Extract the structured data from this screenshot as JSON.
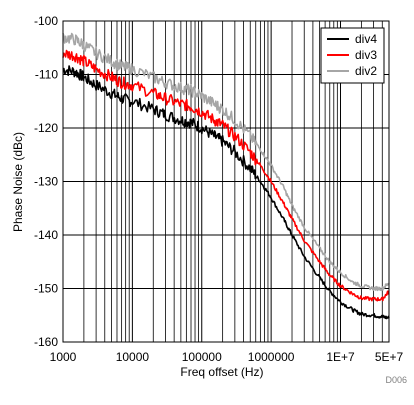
{
  "chart_data": {
    "type": "line",
    "xlabel": "Freq offset (Hz)",
    "ylabel": "Phase Noise (dBc)",
    "x_scale": "log",
    "xlim": [
      1000,
      50000000
    ],
    "ylim": [
      -160,
      -100
    ],
    "grid": true,
    "legend_position": "top-right",
    "figure_id": "D006",
    "x_ticks": [
      {
        "value": 1000,
        "label": "1000"
      },
      {
        "value": 10000,
        "label": "10000"
      },
      {
        "value": 100000,
        "label": "100000"
      },
      {
        "value": 1000000,
        "label": "1000000"
      },
      {
        "value": 10000000,
        "label": "1E+7"
      },
      {
        "value": 50000000,
        "label": "5E+7"
      }
    ],
    "y_ticks": [
      {
        "value": -100,
        "label": "-100"
      },
      {
        "value": -110,
        "label": "-110"
      },
      {
        "value": -120,
        "label": "-120"
      },
      {
        "value": -130,
        "label": "-130"
      },
      {
        "value": -140,
        "label": "-140"
      },
      {
        "value": -150,
        "label": "-150"
      },
      {
        "value": -160,
        "label": "-160"
      }
    ],
    "series": [
      {
        "name": "div4",
        "color": "#000000",
        "x": [
          1000,
          1500,
          2000,
          3000,
          5000,
          7000,
          10000,
          20000,
          30000,
          50000,
          70000,
          100000,
          150000,
          200000,
          300000,
          500000,
          700000,
          1000000,
          1500000,
          2000000,
          3000000,
          5000000,
          7000000,
          10000000,
          15000000,
          20000000,
          30000000,
          40000000,
          50000000
        ],
        "y": [
          -109,
          -109.5,
          -110.5,
          -112,
          -113.5,
          -114.5,
          -115,
          -116.5,
          -117.5,
          -118.5,
          -119,
          -120,
          -121.5,
          -122.5,
          -124.5,
          -127.5,
          -130,
          -133,
          -137,
          -140,
          -144,
          -148,
          -150.5,
          -152.5,
          -154,
          -154.8,
          -155,
          -155.3,
          -155.5
        ]
      },
      {
        "name": "div3",
        "color": "#ff0000",
        "x": [
          1000,
          1500,
          2000,
          3000,
          5000,
          7000,
          10000,
          20000,
          30000,
          50000,
          70000,
          100000,
          150000,
          200000,
          300000,
          500000,
          700000,
          1000000,
          1500000,
          2000000,
          3000000,
          5000000,
          7000000,
          10000000,
          15000000,
          20000000,
          30000000,
          40000000,
          50000000
        ],
        "y": [
          -106,
          -106.5,
          -107.5,
          -109,
          -110.5,
          -111.5,
          -112,
          -113.5,
          -114.5,
          -115.5,
          -116,
          -117,
          -118.5,
          -119.5,
          -121.5,
          -124.5,
          -127,
          -130,
          -134,
          -137,
          -141,
          -145,
          -147.5,
          -149.5,
          -151,
          -151.8,
          -152,
          -152,
          -150.5
        ]
      },
      {
        "name": "div2",
        "color": "#a6a6a6",
        "x": [
          1000,
          1500,
          2000,
          3000,
          5000,
          7000,
          10000,
          20000,
          30000,
          50000,
          70000,
          100000,
          150000,
          200000,
          300000,
          500000,
          700000,
          1000000,
          1500000,
          2000000,
          3000000,
          5000000,
          7000000,
          10000000,
          15000000,
          20000000,
          30000000,
          40000000,
          50000000
        ],
        "y": [
          -103,
          -103.5,
          -104.5,
          -106,
          -107.5,
          -108.5,
          -109,
          -110.5,
          -111.5,
          -112.5,
          -113,
          -114,
          -115.5,
          -116.5,
          -118.5,
          -121.5,
          -124,
          -127,
          -131,
          -134.5,
          -138.5,
          -142.5,
          -145,
          -147,
          -148.8,
          -149.5,
          -150,
          -150,
          -149
        ]
      }
    ]
  }
}
